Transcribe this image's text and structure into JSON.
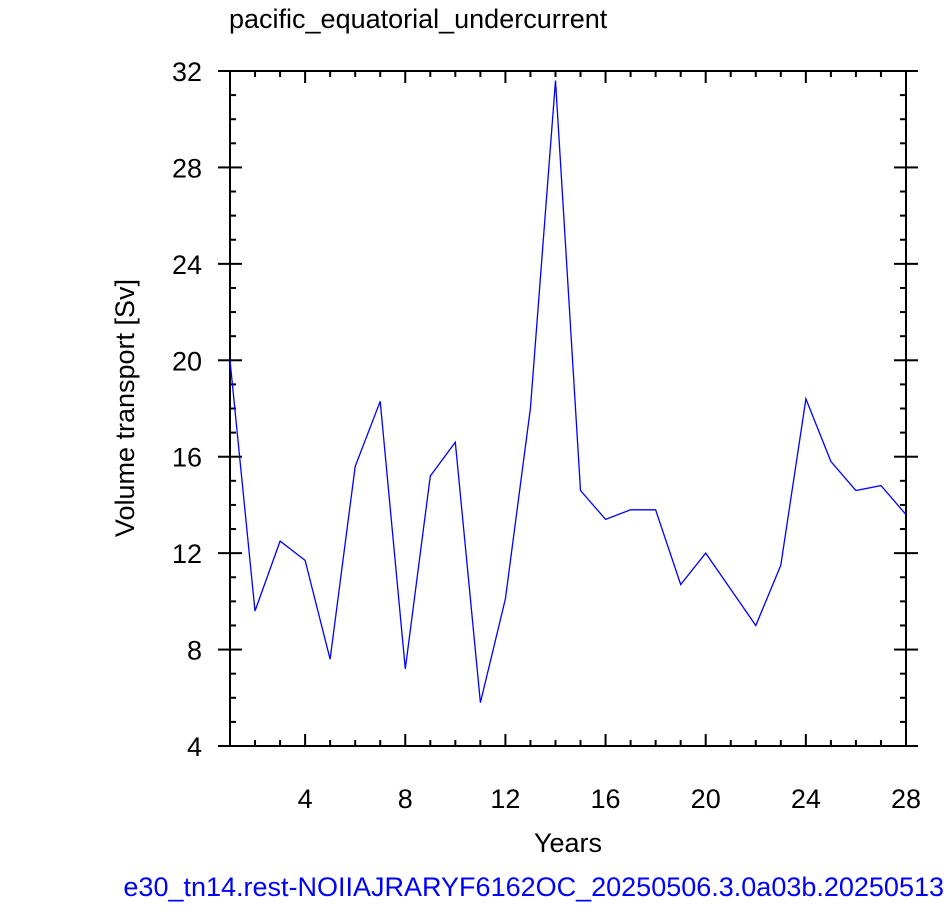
{
  "chart_data": {
    "type": "line",
    "title": "pacific_equatorial_undercurrent",
    "xlabel": "Years",
    "ylabel": "Volume transport [Sv]",
    "xlim": [
      1,
      28
    ],
    "ylim": [
      4,
      32
    ],
    "x_ticks": [
      4,
      8,
      12,
      16,
      20,
      24,
      28
    ],
    "y_ticks": [
      4,
      8,
      12,
      16,
      20,
      24,
      28,
      32
    ],
    "grid": false,
    "series": [
      {
        "color": "#0000ff",
        "x": [
          1,
          2,
          3,
          4,
          5,
          6,
          7,
          8,
          9,
          10,
          11,
          12,
          13,
          14,
          15,
          16,
          17,
          18,
          19,
          20,
          21,
          22,
          23,
          24,
          25,
          26,
          27,
          28
        ],
        "values": [
          20.0,
          9.6,
          12.5,
          11.7,
          7.6,
          15.6,
          18.3,
          7.2,
          15.2,
          16.6,
          5.8,
          10.1,
          18.0,
          31.6,
          14.6,
          13.4,
          13.8,
          13.8,
          10.7,
          12.0,
          10.5,
          9.0,
          11.5,
          18.4,
          15.8,
          14.6,
          14.8,
          13.6
        ]
      }
    ]
  },
  "footer": "e30_tn14.rest-NOIIAJRARYF6162OC_20250506.3.0a03b.20250513"
}
